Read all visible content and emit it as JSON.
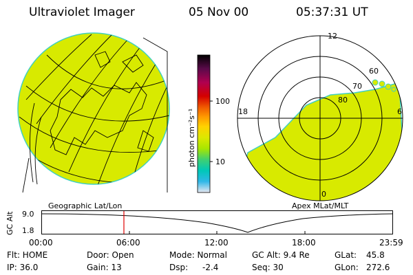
{
  "header": {
    "title": "Ultraviolet Imager",
    "date": "05 Nov 00",
    "time": "05:37:31 UT"
  },
  "colorbar": {
    "unit_label": "photon cm⁻²s⁻¹",
    "ticks": [
      "100",
      "10"
    ],
    "colors": [
      "#000000",
      "#5a0a4a",
      "#b00050",
      "#d40000",
      "#f05a00",
      "#ff9a00",
      "#ffd200",
      "#dde800",
      "#a8e600",
      "#40d070",
      "#00c8b8",
      "#30b8e8",
      "#e8e8f0"
    ]
  },
  "left_map": {
    "caption": "Geographic Lat/Lon"
  },
  "polar_plot": {
    "caption": "Apex MLat/MLT",
    "mlt_labels": {
      "top": "12",
      "left": "18",
      "right": "6",
      "bottom": "0"
    },
    "lat_labels": [
      "60",
      "70",
      "80"
    ]
  },
  "altitude_plot": {
    "ylabel": "GC Alt",
    "yticks": [
      "9.0",
      "1.8"
    ],
    "xticks": [
      "00:00",
      "06:00",
      "12:00",
      "18:00",
      "23:59"
    ],
    "marker_time": "05:37:31"
  },
  "status": {
    "flt": "Flt: HOME",
    "ip": "IP: 36.0",
    "door": "Door: Open",
    "gain": "Gain: 13",
    "mode": "Mode: Normal",
    "dsp_label": "Dsp:",
    "dsp_value": "-2.4",
    "gc_alt": "GC Alt: 9.4 Re",
    "seq": "Seq: 30",
    "glat": "GLat:",
    "glat_value": "45.8",
    "glon": "GLon:",
    "glon_value": "272.6"
  }
}
